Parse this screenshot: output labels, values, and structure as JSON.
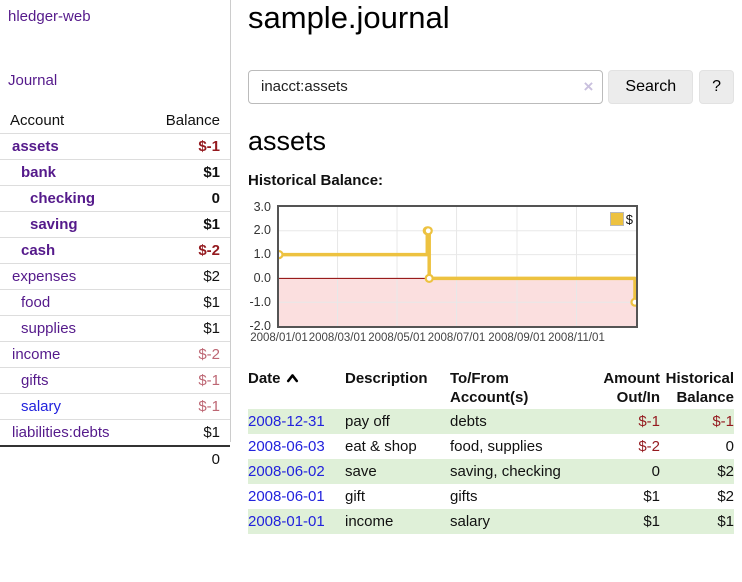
{
  "sidebar": {
    "brand": "hledger-web",
    "journal_link": "Journal",
    "header": {
      "account": "Account",
      "balance": "Balance"
    },
    "accounts": [
      {
        "name": "assets",
        "balance": "$-1",
        "level": 1,
        "bold": true,
        "link_style": "purple"
      },
      {
        "name": "bank",
        "balance": "$1",
        "level": 2,
        "bold": true,
        "link_style": "purple"
      },
      {
        "name": "checking",
        "balance": "0",
        "level": 3,
        "bold": true,
        "link_style": "purple"
      },
      {
        "name": "saving",
        "balance": "$1",
        "level": 3,
        "bold": true,
        "link_style": "purple"
      },
      {
        "name": "cash",
        "balance": "$-2",
        "level": 2,
        "bold": true,
        "link_style": "purple"
      },
      {
        "name": "expenses",
        "balance": "$2",
        "level": 1,
        "bold": false,
        "link_style": "purple"
      },
      {
        "name": "food",
        "balance": "$1",
        "level": 2,
        "bold": false,
        "link_style": "purple"
      },
      {
        "name": "supplies",
        "balance": "$1",
        "level": 2,
        "bold": false,
        "link_style": "purple"
      },
      {
        "name": "income",
        "balance": "$-2",
        "level": 1,
        "bold": false,
        "link_style": "purple"
      },
      {
        "name": "gifts",
        "balance": "$-1",
        "level": 2,
        "bold": false,
        "link_style": "purple"
      },
      {
        "name": "salary",
        "balance": "$-1",
        "level": 2,
        "bold": false,
        "link_style": "blue"
      },
      {
        "name": "liabilities:debts",
        "balance": "$1",
        "level": 1,
        "bold": false,
        "link_style": "purple"
      }
    ],
    "total": "0"
  },
  "header": {
    "title": "sample.journal"
  },
  "search": {
    "value": "inacct:assets",
    "clear_icon": "×",
    "button": "Search",
    "help_button": "?"
  },
  "account_view": {
    "heading": "assets",
    "chart_title": "Historical Balance:"
  },
  "chart_data": {
    "type": "line",
    "style": "step",
    "title": "Historical Balance:",
    "x_unit": "days since 2008-01-01",
    "xlim": [
      0,
      366
    ],
    "ylim": [
      -2,
      3
    ],
    "y_ticks": [
      {
        "value": 3,
        "label": "3.0"
      },
      {
        "value": 2,
        "label": "2.0"
      },
      {
        "value": 1,
        "label": "1.0"
      },
      {
        "value": 0,
        "label": "0.0"
      },
      {
        "value": -1,
        "label": "-1.0"
      },
      {
        "value": -2,
        "label": "-2.0"
      }
    ],
    "x_ticks": [
      {
        "day": 0,
        "label": "2008/01/01"
      },
      {
        "day": 60,
        "label": "2008/03/01"
      },
      {
        "day": 121,
        "label": "2008/05/01"
      },
      {
        "day": 182,
        "label": "2008/07/01"
      },
      {
        "day": 244,
        "label": "2008/09/01"
      },
      {
        "day": 305,
        "label": "2008/11/01"
      }
    ],
    "series": [
      {
        "name": "$",
        "color": "#edc240",
        "points": [
          {
            "date": "2008-01-01",
            "day": 0,
            "value": 1
          },
          {
            "date": "2008-06-01",
            "day": 152,
            "value": 2
          },
          {
            "date": "2008-06-02",
            "day": 153,
            "value": 2
          },
          {
            "date": "2008-06-03",
            "day": 154,
            "value": 0
          },
          {
            "date": "2008-12-31",
            "day": 365,
            "value": -1
          }
        ]
      }
    ],
    "legend": {
      "label": "$",
      "position": "top-right"
    },
    "grid": true,
    "grid_color": "#e8e8e8",
    "zero_line_color": "#8b0000",
    "negative_region_color": "#fbdfdf"
  },
  "register": {
    "columns": [
      "Date",
      "Description",
      "To/From\nAccount(s)",
      "Amount\nOut/In",
      "Historical\nBalance"
    ],
    "sort_column": "Date",
    "sort_direction": "ascending",
    "rows": [
      {
        "date": "2008-12-31",
        "description": "pay off",
        "accounts": "debts",
        "amount": "$-1",
        "balance": "$-1"
      },
      {
        "date": "2008-06-03",
        "description": "eat & shop",
        "accounts": "food, supplies",
        "amount": "$-2",
        "balance": "0"
      },
      {
        "date": "2008-06-02",
        "description": "save",
        "accounts": "saving, checking",
        "amount": "0",
        "balance": "$2"
      },
      {
        "date": "2008-06-01",
        "description": "gift",
        "accounts": "gifts",
        "amount": "$1",
        "balance": "$2"
      },
      {
        "date": "2008-01-01",
        "description": "income",
        "accounts": "salary",
        "amount": "$1",
        "balance": "$1"
      }
    ]
  },
  "colors": {
    "link_purple": "#551a8b",
    "link_blue": "#2222dd",
    "negative_strong": "#941a1f",
    "negative_soft": "#bd6673",
    "row_green": "#dff0d8",
    "series_gold": "#edc240"
  }
}
